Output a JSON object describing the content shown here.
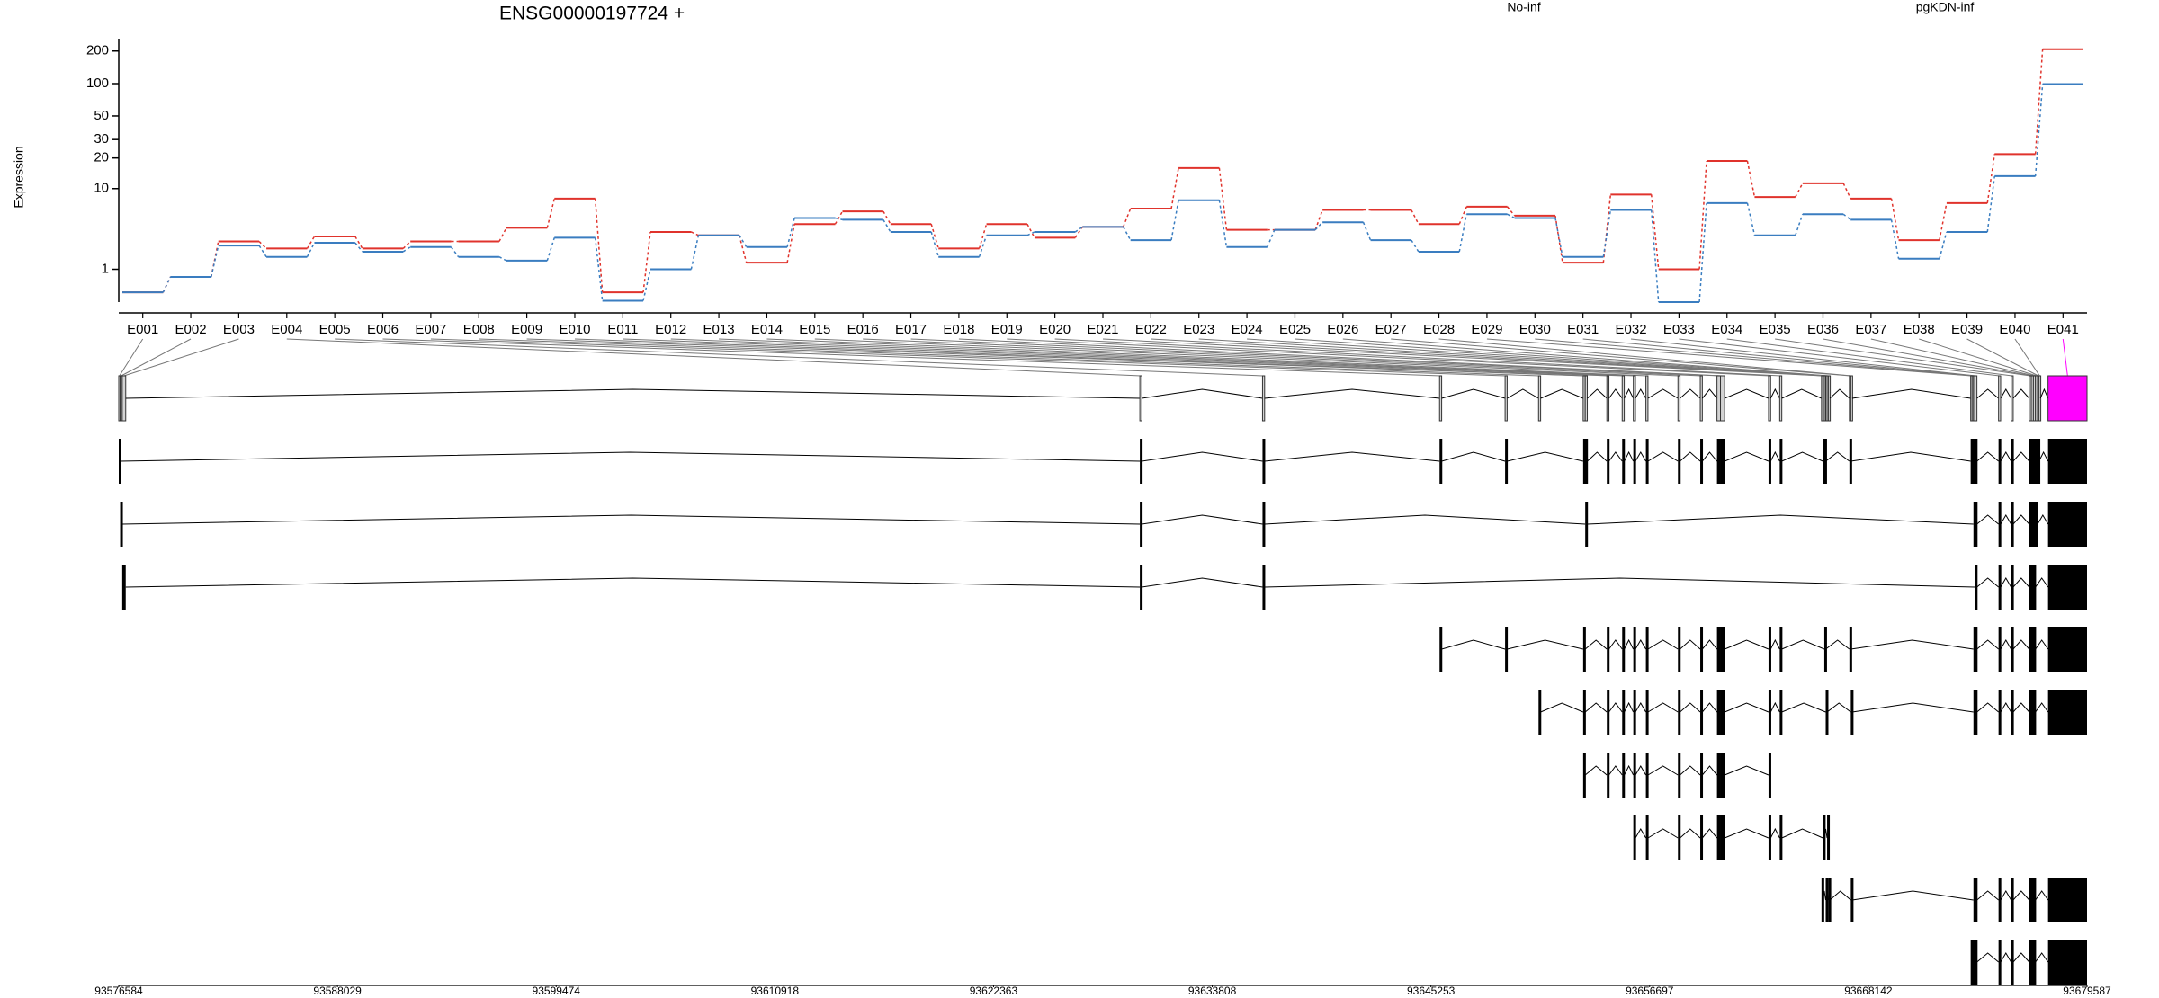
{
  "chart_data": {
    "type": "line",
    "title": "ENSG00000197724 +",
    "y_label": "Expression",
    "y_scale": "log1p",
    "categories": [
      "E001",
      "E002",
      "E003",
      "E004",
      "E005",
      "E006",
      "E007",
      "E008",
      "E009",
      "E010",
      "E011",
      "E012",
      "E013",
      "E014",
      "E015",
      "E016",
      "E017",
      "E018",
      "E019",
      "E020",
      "E021",
      "E022",
      "E023",
      "E024",
      "E025",
      "E026",
      "E027",
      "E028",
      "E029",
      "E030",
      "E031",
      "E032",
      "E033",
      "E034",
      "E035",
      "E036",
      "E037",
      "E038",
      "E039",
      "E040",
      "E041"
    ],
    "series": [
      {
        "name": "No-inf",
        "color": "#e0332c",
        "values": [
          0.23,
          0.7,
          2.6,
          2.1,
          3.0,
          2.1,
          2.6,
          2.6,
          3.8,
          7.9,
          0.23,
          3.4,
          3.1,
          1.3,
          4.2,
          5.8,
          4.2,
          2.1,
          4.2,
          2.9,
          3.9,
          6.2,
          16,
          3.6,
          3.6,
          6.0,
          6.0,
          4.2,
          6.5,
          5.2,
          1.3,
          8.7,
          1.0,
          18.7,
          8.2,
          11.3,
          7.9,
          2.7,
          7.1,
          21.8,
          208
        ]
      },
      {
        "name": "pgKDN-inf",
        "color": "#3a7dc0",
        "values": [
          0.23,
          0.7,
          2.3,
          1.6,
          2.5,
          1.9,
          2.2,
          1.6,
          1.4,
          2.9,
          0.03,
          1.0,
          3.1,
          2.2,
          4.9,
          4.7,
          3.4,
          1.6,
          3.1,
          3.4,
          3.9,
          2.7,
          7.6,
          2.2,
          3.6,
          4.4,
          2.7,
          1.9,
          5.4,
          4.9,
          1.6,
          6.0,
          0,
          7.1,
          3.1,
          5.4,
          4.7,
          1.5,
          3.4,
          13.3,
          99
        ]
      }
    ],
    "ylim": [
      0,
      260
    ],
    "yticks": [
      1,
      10,
      20,
      30,
      50,
      100,
      200
    ],
    "gene_model": {
      "xlim": [
        93576584,
        93679587
      ],
      "xticks": [
        93576584,
        93588029,
        93599474,
        93610918,
        93622363,
        93633808,
        93645253,
        93656697,
        93668142,
        93679587
      ],
      "exon_start": [
        93576584,
        93576657,
        93576766,
        93630020,
        93636439,
        93645704,
        93649133,
        93650884,
        93653218,
        93653327,
        93654458,
        93655261,
        93655844,
        93656501,
        93658179,
        93659346,
        93660221,
        93660404,
        93662920,
        93663504,
        93665692,
        93665765,
        93665838,
        93665911,
        93665984,
        93666057,
        93667151,
        93667224,
        93673498,
        93673571,
        93673644,
        93673717,
        93674957,
        93675614,
        93676562,
        93676671,
        93676781,
        93676890,
        93677000,
        93677073,
        93677547
      ],
      "exon_end": [
        93576657,
        93576766,
        93576949,
        93630129,
        93636549,
        93645814,
        93649242,
        93650993,
        93653327,
        93653437,
        93654568,
        93655370,
        93655954,
        93656610,
        93658288,
        93659455,
        93660404,
        93660622,
        93663030,
        93663613,
        93665765,
        93665838,
        93665911,
        93665984,
        93666057,
        93666130,
        93667224,
        93667297,
        93673571,
        93673644,
        93673717,
        93673826,
        93675067,
        93675723,
        93676671,
        93676781,
        93676890,
        93677000,
        93677073,
        93677146,
        93679587
      ],
      "highlight": 40,
      "highlight_color": "#ff00ff",
      "transcripts": [
        [
          0,
          3,
          4,
          5,
          6,
          8,
          9,
          10,
          11,
          12,
          13,
          14,
          15,
          16,
          17,
          18,
          19,
          21,
          22,
          26,
          28,
          29,
          30,
          31,
          32,
          33,
          34,
          35,
          36,
          37,
          38,
          40
        ],
        [
          1,
          3,
          4,
          9,
          30,
          31,
          32,
          33,
          34,
          35,
          36,
          37,
          40
        ],
        [
          2,
          3,
          4,
          31,
          32,
          33,
          34,
          35,
          36,
          40
        ],
        [
          5,
          6,
          8,
          10,
          11,
          12,
          13,
          14,
          15,
          16,
          17,
          18,
          19,
          22,
          26,
          30,
          31,
          32,
          33,
          34,
          35,
          36,
          40
        ],
        [
          7,
          8,
          10,
          11,
          12,
          13,
          14,
          15,
          16,
          17,
          18,
          19,
          23,
          27,
          30,
          31,
          32,
          33,
          34,
          35,
          36,
          40
        ],
        [
          8,
          10,
          11,
          12,
          13,
          14,
          15,
          16,
          17,
          18
        ],
        [
          12,
          13,
          14,
          15,
          16,
          17,
          18,
          19,
          21,
          24
        ],
        [
          20,
          23,
          25,
          27,
          30,
          31,
          32,
          33,
          34,
          35,
          36,
          40
        ],
        [
          28,
          29,
          30,
          31,
          32,
          33,
          34,
          35,
          36,
          40
        ]
      ]
    }
  }
}
